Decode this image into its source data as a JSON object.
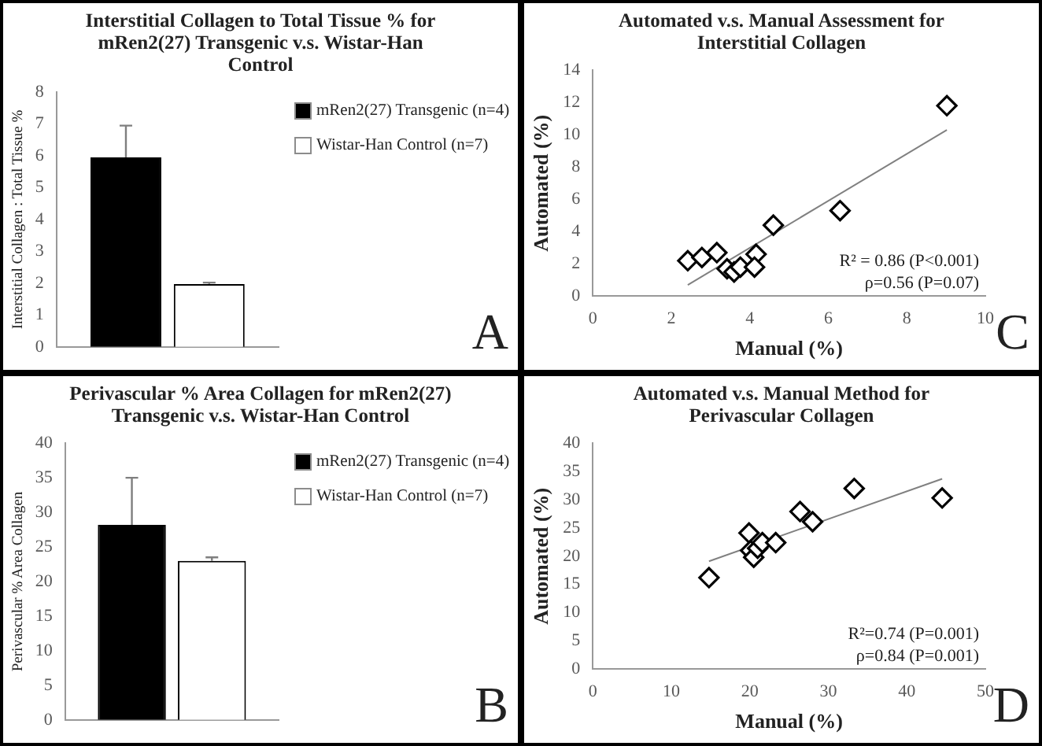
{
  "chart_data": [
    {
      "type": "bar",
      "title": "Interstitial  Collagen to Total Tissue % for mRen2(27) Transgenic v.s. Wistar-Han Control",
      "ylabel": "Interstitial Collagen : Total Tissue %",
      "categories": [
        null
      ],
      "series": [
        {
          "name": "mRen2(27) Transgenic (n=4)",
          "color": "#000000",
          "values": [
            5.95
          ],
          "errors": [
            [
              5.95,
              6.95
            ]
          ]
        },
        {
          "name": "Wistar-Han Control (n=7)",
          "color": "#ffffff",
          "values": [
            1.97
          ],
          "errors": [
            [
              1.97,
              2.02
            ]
          ]
        }
      ],
      "ylim": [
        0,
        8
      ],
      "yticks": [
        0,
        1,
        2,
        3,
        4,
        5,
        6,
        7,
        8
      ],
      "tick_labels": "y",
      "legend": "top right",
      "annotations": [
        "A"
      ]
    },
    {
      "type": "scatter",
      "title": "Automated v.s. Manual Assessment for Interstitial  Collagen",
      "xlabel": "Manual (%)",
      "ylabel": "Automated (%)",
      "marker": "diamond",
      "series": [
        {
          "type": "scatter",
          "color": "#000000",
          "x": [
            2.42,
            2.78,
            3.16,
            3.42,
            3.6,
            3.76,
            4.16,
            4.12,
            4.6,
            6.3,
            9.02
          ],
          "values": [
            2.2,
            2.4,
            2.7,
            1.7,
            1.5,
            1.8,
            2.6,
            1.8,
            4.4,
            5.3,
            11.8
          ]
        },
        {
          "type": "line",
          "color": "#808080",
          "marker": "none",
          "x": [
            2.42,
            9.02
          ],
          "values": [
            0.7,
            10.3
          ]
        }
      ],
      "xlim": [
        0,
        10
      ],
      "xticks": [
        0,
        2,
        4,
        6,
        8,
        10
      ],
      "ylim": [
        0,
        14
      ],
      "yticks": [
        0,
        2,
        4,
        6,
        8,
        10,
        12,
        14
      ],
      "annotations": [
        "R² = 0.86 (P<0.001)",
        "ρ=0.56 (P=0.07)",
        "C"
      ]
    },
    {
      "type": "bar",
      "title": "Perivascular  % Area Collagen for mRen2(27) Transgenic v.s. Wistar-Han Control",
      "ylabel": "Perivascular % Area Collagen",
      "categories": [
        null
      ],
      "series": [
        {
          "name": "mRen2(27) Transgenic (n=4)",
          "color": "#000000",
          "values": [
            28.2
          ],
          "errors": [
            [
              28.2,
              35
            ]
          ]
        },
        {
          "name": "Wistar-Han Control (n=7)",
          "color": "#ffffff",
          "values": [
            23
          ],
          "errors": [
            [
              23,
              23.5
            ]
          ]
        }
      ],
      "ylim": [
        0,
        40
      ],
      "yticks": [
        0,
        5,
        10,
        15,
        20,
        25,
        30,
        35,
        40
      ],
      "tick_labels": "y",
      "legend": "top right",
      "annotations": [
        "B"
      ]
    },
    {
      "type": "scatter",
      "title": "Automated v.s. Manual Method for Perivascular Collagen",
      "xlabel": "Manual (%)",
      "ylabel": "Automated (%)",
      "marker": "diamond",
      "series": [
        {
          "type": "scatter",
          "color": "#000000",
          "x": [
            14.8,
            19.9,
            20.1,
            20.5,
            21,
            21.6,
            23.3,
            26.4,
            28,
            33.3,
            44.5
          ],
          "values": [
            16.2,
            24.1,
            21,
            19.8,
            21.4,
            22.4,
            22.4,
            27.9,
            26.1,
            32,
            30.3
          ]
        },
        {
          "type": "line",
          "color": "#808080",
          "marker": "none",
          "x": [
            14.8,
            44.5
          ],
          "values": [
            19.1,
            33.7
          ]
        }
      ],
      "xlim": [
        0,
        50
      ],
      "xticks": [
        0,
        10,
        20,
        30,
        40,
        50
      ],
      "ylim": [
        0,
        40
      ],
      "yticks": [
        0,
        5,
        10,
        15,
        20,
        25,
        30,
        35,
        40
      ],
      "annotations": [
        "R²=0.74 (P=0.001)",
        "ρ=0.84 (P=0.001)",
        "D"
      ]
    }
  ]
}
